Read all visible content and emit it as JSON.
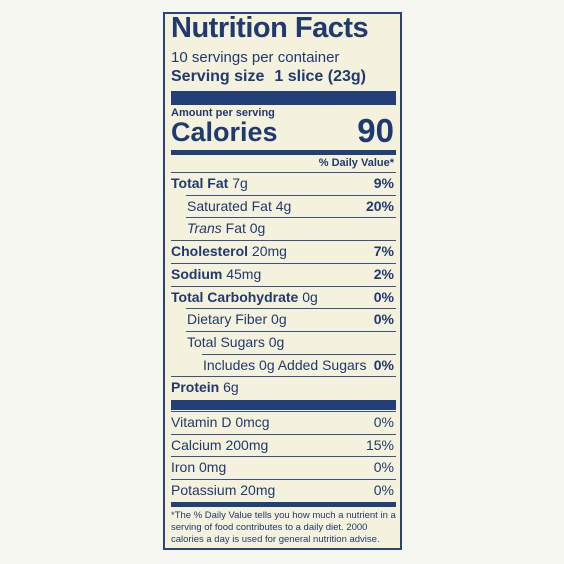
{
  "header": {
    "title": "Nutrition Facts",
    "servings": "10 servings per container",
    "serving_size_label": "Serving size",
    "serving_size_value": "1 slice (23g)"
  },
  "calories": {
    "amount_label": "Amount per serving",
    "label": "Calories",
    "value": "90"
  },
  "daily_value_header": "% Daily Value*",
  "nutrients": [
    {
      "name": "Total Fat",
      "amount": "7g",
      "dv": "9%",
      "bold": true,
      "indent": 0
    },
    {
      "name": "Saturated Fat",
      "amount": "4g",
      "dv": "20%",
      "bold": false,
      "indent": 1
    },
    {
      "italic": "Trans",
      "name": "Fat",
      "amount": "0g",
      "bold": false,
      "indent": 1
    },
    {
      "name": "Cholesterol",
      "amount": "20mg",
      "dv": "7%",
      "bold": true,
      "indent": 0
    },
    {
      "name": "Sodium",
      "amount": "45mg",
      "dv": "2%",
      "bold": true,
      "indent": 0
    },
    {
      "name": "Total Carbohydrate",
      "amount": "0g",
      "dv": "0%",
      "bold": true,
      "indent": 0
    },
    {
      "name": "Dietary Fiber",
      "amount": "0g",
      "dv": "0%",
      "bold": false,
      "indent": 1
    },
    {
      "name": "Total Sugars",
      "amount": "0g",
      "bold": false,
      "indent": 1
    },
    {
      "name": "Includes 0g Added Sugars",
      "dv": "0%",
      "bold": false,
      "indent": 2
    },
    {
      "name": "Protein",
      "amount": "6g",
      "bold": true,
      "indent": 0
    }
  ],
  "vitamins": [
    {
      "name": "Vitamin D",
      "amount": "0mcg",
      "dv": "0%"
    },
    {
      "name": "Calcium",
      "amount": "200mg",
      "dv": "15%"
    },
    {
      "name": "Iron",
      "amount": "0mg",
      "dv": "0%"
    },
    {
      "name": "Potassium",
      "amount": "20mg",
      "dv": "0%"
    }
  ],
  "footnote": "*The % Daily Value tells you how much a nutrient in a serving of food contributes to a daily diet. 2000 calories a day is used for general nutrition advise."
}
